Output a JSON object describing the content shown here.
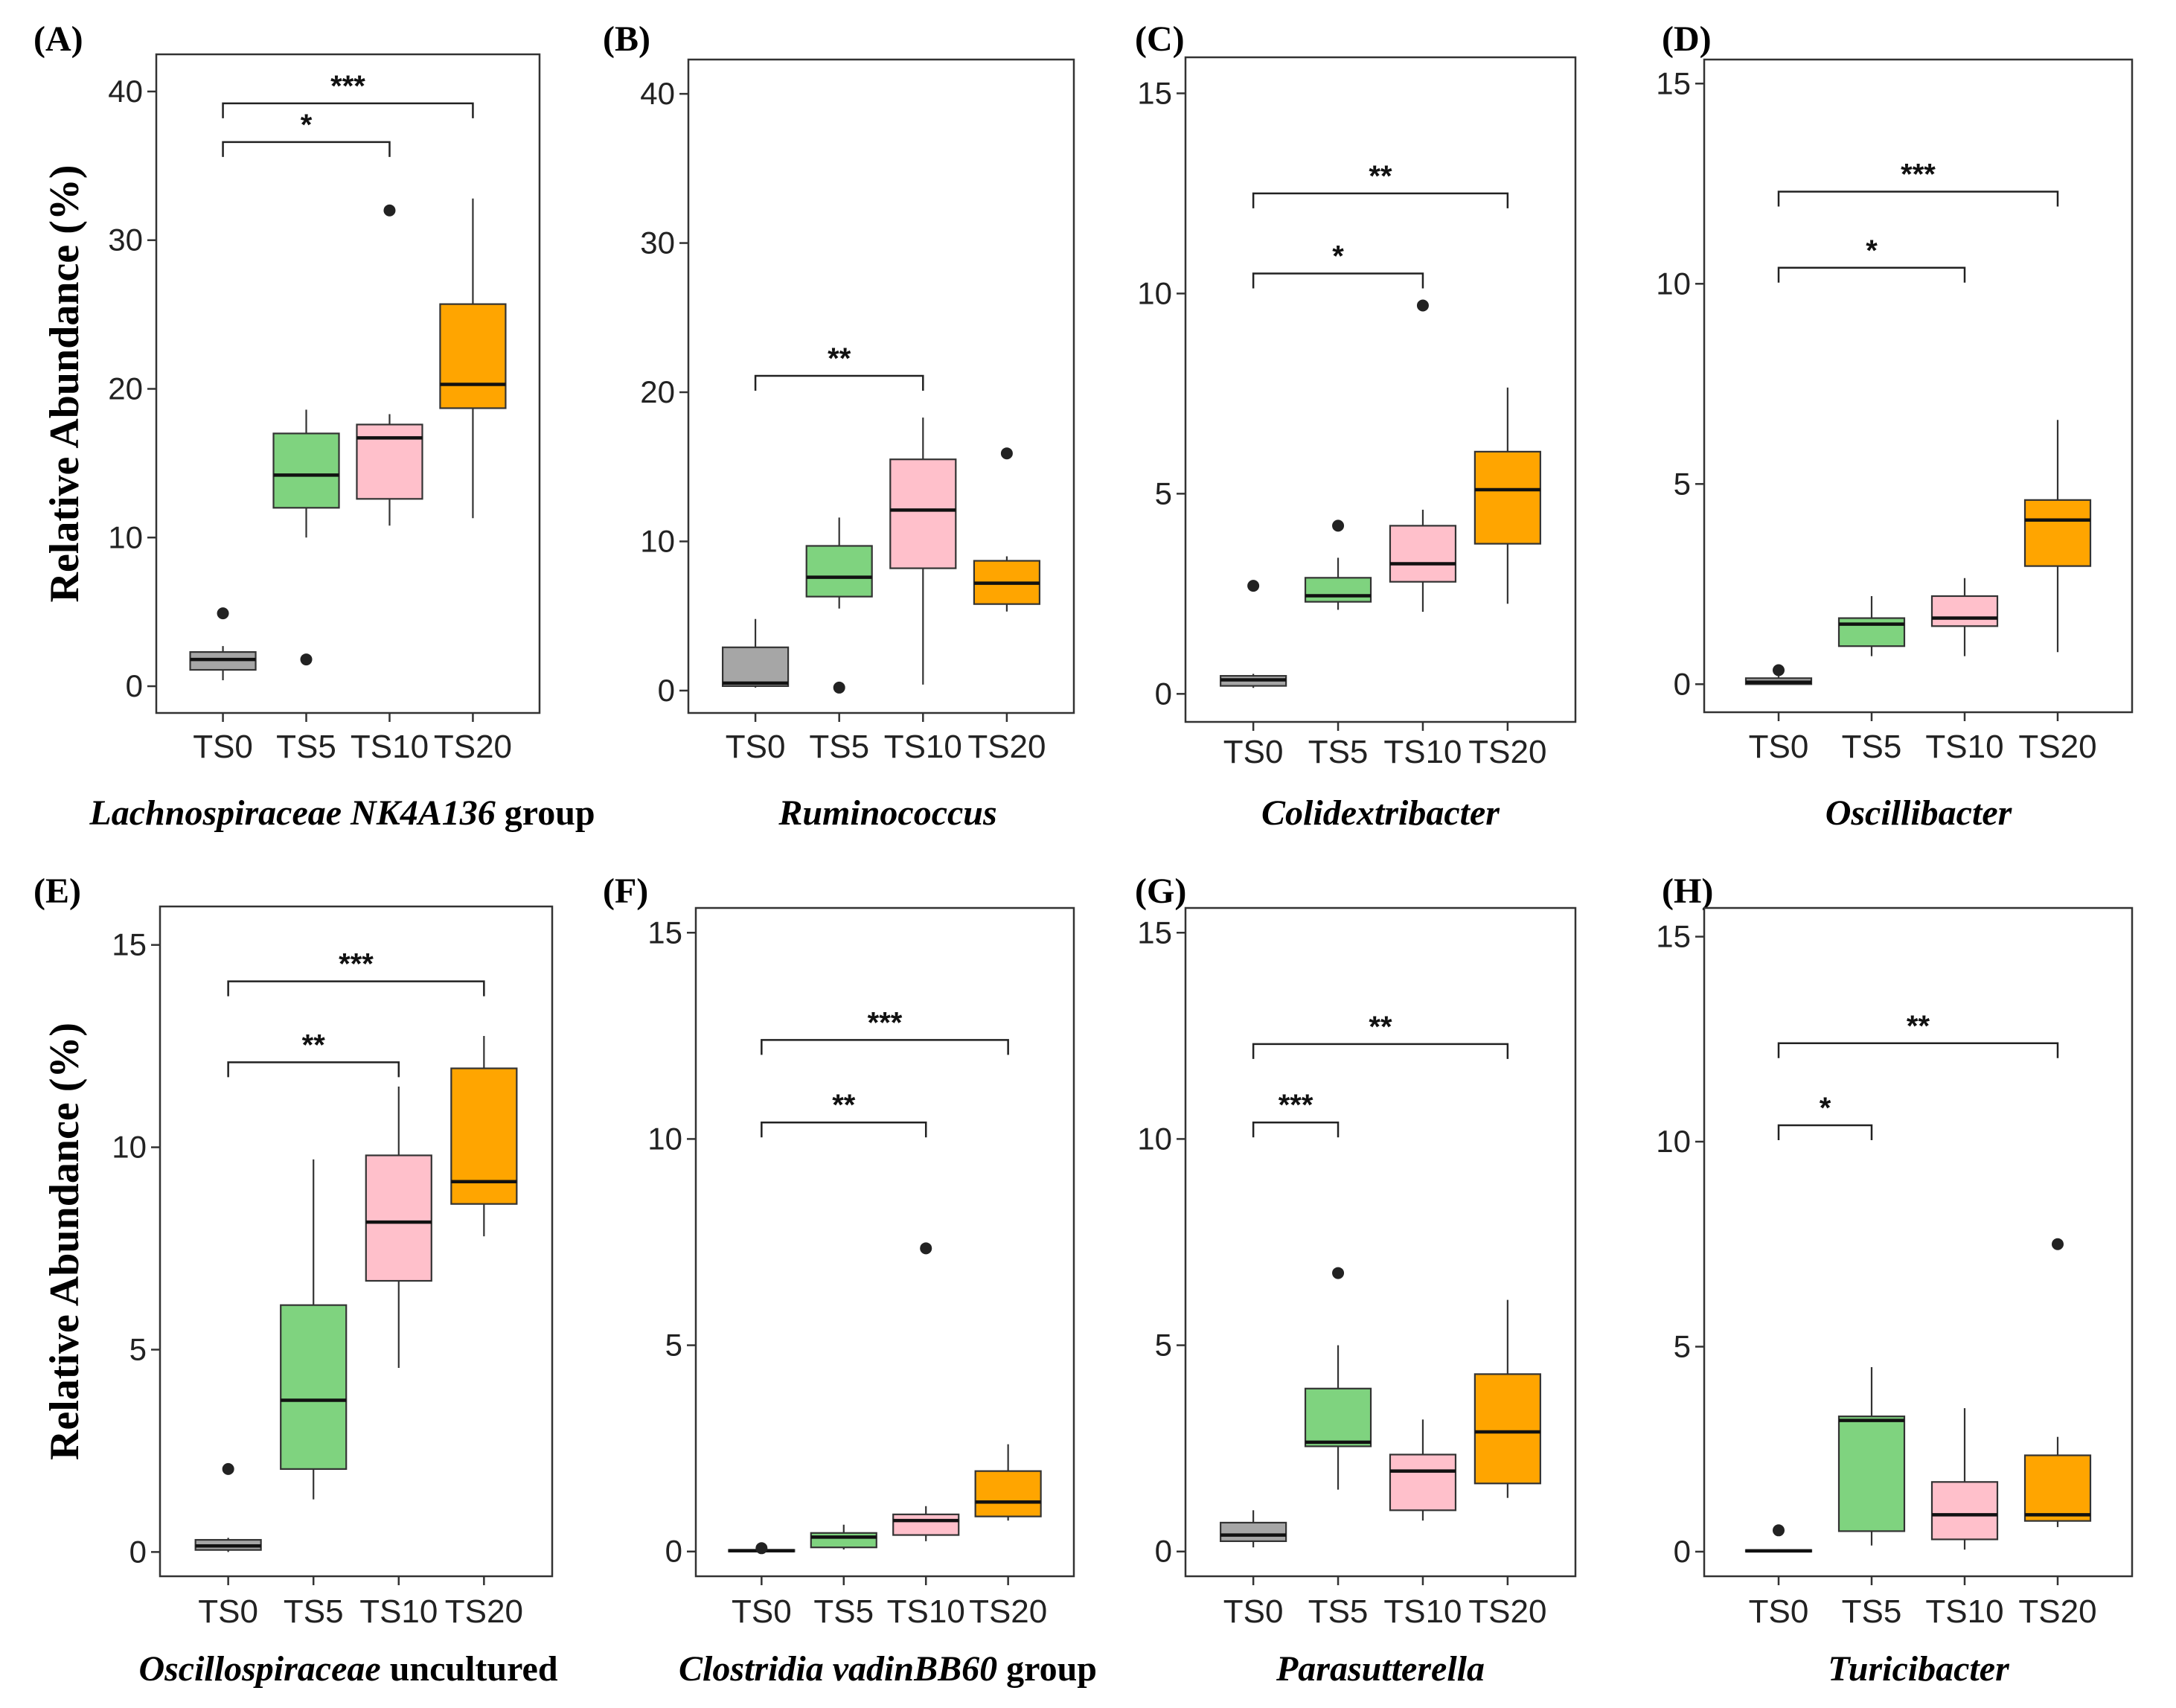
{
  "figure": {
    "y_axis_label": "Relative Abundance (%)"
  },
  "colors": {
    "TS0": "#a6a6a6",
    "TS5": "#7fd37f",
    "TS10": "#ffc0cb",
    "TS20": "#ffa500",
    "outline": "#333333"
  },
  "chart_data": [
    {
      "type": "boxplot",
      "label": "(A)",
      "genus_italic": "Lachnospiraceae NK4A136",
      "genus_plain": " group",
      "categories": [
        "TS0",
        "TS5",
        "TS10",
        "TS20"
      ],
      "ylim": [
        -1.8,
        42.5
      ],
      "yticks": [
        0,
        10,
        20,
        30,
        40
      ],
      "boxes": [
        {
          "q1": 1.1,
          "median": 1.8,
          "q3": 2.3,
          "whislo": 0.4,
          "whishi": 2.7,
          "outliers": [
            4.9
          ]
        },
        {
          "q1": 12.0,
          "median": 14.2,
          "q3": 17.0,
          "whislo": 10.0,
          "whishi": 18.6,
          "outliers": [
            1.8
          ]
        },
        {
          "q1": 12.6,
          "median": 16.7,
          "q3": 17.6,
          "whislo": 10.8,
          "whishi": 18.3,
          "outliers": [
            32.0
          ]
        },
        {
          "q1": 18.7,
          "median": 20.3,
          "q3": 25.7,
          "whislo": 11.3,
          "whishi": 32.8,
          "outliers": []
        }
      ],
      "significance": [
        {
          "from": 0,
          "to": 3,
          "label": "***",
          "y": 39.2
        },
        {
          "from": 0,
          "to": 2,
          "label": "*",
          "y": 36.6
        }
      ]
    },
    {
      "type": "boxplot",
      "label": "(B)",
      "genus_italic": "Ruminococcus",
      "genus_plain": "",
      "categories": [
        "TS0",
        "TS5",
        "TS10",
        "TS20"
      ],
      "ylim": [
        -1.5,
        42.3
      ],
      "yticks": [
        0,
        10,
        20,
        30,
        40
      ],
      "boxes": [
        {
          "q1": 0.3,
          "median": 0.5,
          "q3": 2.9,
          "whislo": 0.2,
          "whishi": 4.8,
          "outliers": []
        },
        {
          "q1": 6.3,
          "median": 7.6,
          "q3": 9.7,
          "whislo": 5.5,
          "whishi": 11.6,
          "outliers": [
            0.2
          ]
        },
        {
          "q1": 8.2,
          "median": 12.1,
          "q3": 15.5,
          "whislo": 0.4,
          "whishi": 18.3,
          "outliers": []
        },
        {
          "q1": 5.8,
          "median": 7.2,
          "q3": 8.7,
          "whislo": 5.3,
          "whishi": 9.0,
          "outliers": [
            15.9
          ]
        }
      ],
      "significance": [
        {
          "from": 0,
          "to": 2,
          "label": "**",
          "y": 21.1
        }
      ]
    },
    {
      "type": "boxplot",
      "label": "(C)",
      "genus_italic": "Colidextribacter",
      "genus_plain": "",
      "categories": [
        "TS0",
        "TS5",
        "TS10",
        "TS20"
      ],
      "ylim": [
        -0.7,
        15.9
      ],
      "yticks": [
        0,
        5,
        10,
        15
      ],
      "boxes": [
        {
          "q1": 0.2,
          "median": 0.35,
          "q3": 0.45,
          "whislo": 0.15,
          "whishi": 0.5,
          "outliers": [
            2.7
          ]
        },
        {
          "q1": 2.3,
          "median": 2.45,
          "q3": 2.9,
          "whislo": 2.1,
          "whishi": 3.4,
          "outliers": [
            4.2
          ]
        },
        {
          "q1": 2.8,
          "median": 3.25,
          "q3": 4.2,
          "whislo": 2.05,
          "whishi": 4.6,
          "outliers": [
            9.7
          ]
        },
        {
          "q1": 3.75,
          "median": 5.1,
          "q3": 6.05,
          "whislo": 2.25,
          "whishi": 7.65,
          "outliers": []
        }
      ],
      "significance": [
        {
          "from": 0,
          "to": 3,
          "label": "**",
          "y": 12.5
        },
        {
          "from": 0,
          "to": 2,
          "label": "*",
          "y": 10.5
        }
      ]
    },
    {
      "type": "boxplot",
      "label": "(D)",
      "genus_italic": "Oscillibacter",
      "genus_plain": "",
      "categories": [
        "TS0",
        "TS5",
        "TS10",
        "TS20"
      ],
      "ylim": [
        -0.7,
        15.6
      ],
      "yticks": [
        0,
        5,
        10,
        15
      ],
      "boxes": [
        {
          "q1": 0.0,
          "median": 0.05,
          "q3": 0.15,
          "whislo": 0.0,
          "whishi": 0.2,
          "outliers": [
            0.35
          ]
        },
        {
          "q1": 0.95,
          "median": 1.5,
          "q3": 1.65,
          "whislo": 0.7,
          "whishi": 2.2,
          "outliers": []
        },
        {
          "q1": 1.45,
          "median": 1.65,
          "q3": 2.2,
          "whislo": 0.7,
          "whishi": 2.65,
          "outliers": []
        },
        {
          "q1": 2.95,
          "median": 4.1,
          "q3": 4.6,
          "whislo": 0.8,
          "whishi": 6.6,
          "outliers": []
        }
      ],
      "significance": [
        {
          "from": 0,
          "to": 3,
          "label": "***",
          "y": 12.3
        },
        {
          "from": 0,
          "to": 2,
          "label": "*",
          "y": 10.4
        }
      ]
    },
    {
      "type": "boxplot",
      "label": "(E)",
      "genus_italic": "Oscillospiraceae",
      "genus_plain": " uncultured",
      "categories": [
        "TS0",
        "TS5",
        "TS10",
        "TS20"
      ],
      "ylim": [
        -0.6,
        15.95
      ],
      "yticks": [
        0,
        5,
        10,
        15
      ],
      "boxes": [
        {
          "q1": 0.05,
          "median": 0.15,
          "q3": 0.3,
          "whislo": 0.0,
          "whishi": 0.35,
          "outliers": [
            2.05
          ]
        },
        {
          "q1": 2.05,
          "median": 3.75,
          "q3": 6.1,
          "whislo": 1.3,
          "whishi": 9.7,
          "outliers": []
        },
        {
          "q1": 6.7,
          "median": 8.15,
          "q3": 9.8,
          "whislo": 4.55,
          "whishi": 11.5,
          "outliers": []
        },
        {
          "q1": 8.6,
          "median": 9.15,
          "q3": 11.95,
          "whislo": 7.8,
          "whishi": 12.75,
          "outliers": []
        }
      ],
      "significance": [
        {
          "from": 0,
          "to": 3,
          "label": "***",
          "y": 14.1
        },
        {
          "from": 0,
          "to": 2,
          "label": "**",
          "y": 12.1
        }
      ]
    },
    {
      "type": "boxplot",
      "label": "(F)",
      "genus_italic": "Clostridia vadinBB60",
      "genus_plain": " group",
      "categories": [
        "TS0",
        "TS5",
        "TS10",
        "TS20"
      ],
      "ylim": [
        -0.6,
        15.6
      ],
      "yticks": [
        0,
        5,
        10,
        15
      ],
      "boxes": [
        {
          "q1": 0.0,
          "median": 0.02,
          "q3": 0.04,
          "whislo": 0.0,
          "whishi": 0.06,
          "outliers": [
            0.08
          ]
        },
        {
          "q1": 0.1,
          "median": 0.35,
          "q3": 0.45,
          "whislo": 0.05,
          "whishi": 0.65,
          "outliers": []
        },
        {
          "q1": 0.4,
          "median": 0.75,
          "q3": 0.9,
          "whislo": 0.25,
          "whishi": 1.1,
          "outliers": [
            7.35
          ]
        },
        {
          "q1": 0.85,
          "median": 1.2,
          "q3": 1.95,
          "whislo": 0.75,
          "whishi": 2.6,
          "outliers": []
        }
      ],
      "significance": [
        {
          "from": 0,
          "to": 3,
          "label": "***",
          "y": 12.4
        },
        {
          "from": 0,
          "to": 2,
          "label": "**",
          "y": 10.4
        }
      ]
    },
    {
      "type": "boxplot",
      "label": "(G)",
      "genus_italic": "Parasutterella",
      "genus_plain": "",
      "categories": [
        "TS0",
        "TS5",
        "TS10",
        "TS20"
      ],
      "ylim": [
        -0.6,
        15.6
      ],
      "yticks": [
        0,
        5,
        10,
        15
      ],
      "boxes": [
        {
          "q1": 0.25,
          "median": 0.4,
          "q3": 0.7,
          "whislo": 0.1,
          "whishi": 1.0,
          "outliers": []
        },
        {
          "q1": 2.55,
          "median": 2.65,
          "q3": 3.95,
          "whislo": 1.5,
          "whishi": 5.0,
          "outliers": [
            6.75
          ]
        },
        {
          "q1": 1.0,
          "median": 1.95,
          "q3": 2.35,
          "whislo": 0.75,
          "whishi": 3.2,
          "outliers": []
        },
        {
          "q1": 1.65,
          "median": 2.9,
          "q3": 4.3,
          "whislo": 1.3,
          "whishi": 6.1,
          "outliers": []
        }
      ],
      "significance": [
        {
          "from": 0,
          "to": 3,
          "label": "**",
          "y": 12.3
        },
        {
          "from": 0,
          "to": 1,
          "label": "***",
          "y": 10.4
        }
      ]
    },
    {
      "type": "boxplot",
      "label": "(H)",
      "genus_italic": "Turicibacter",
      "genus_plain": "",
      "categories": [
        "TS0",
        "TS5",
        "TS10",
        "TS20"
      ],
      "ylim": [
        -0.6,
        15.7
      ],
      "yticks": [
        0,
        5,
        10,
        15
      ],
      "boxes": [
        {
          "q1": 0.0,
          "median": 0.02,
          "q3": 0.04,
          "whislo": 0.0,
          "whishi": 0.06,
          "outliers": [
            0.52
          ]
        },
        {
          "q1": 0.5,
          "median": 3.2,
          "q3": 3.3,
          "whislo": 0.15,
          "whishi": 4.5,
          "outliers": []
        },
        {
          "q1": 0.3,
          "median": 0.9,
          "q3": 1.7,
          "whislo": 0.05,
          "whishi": 3.5,
          "outliers": []
        },
        {
          "q1": 0.75,
          "median": 0.9,
          "q3": 2.35,
          "whislo": 0.6,
          "whishi": 2.8,
          "outliers": [
            7.5
          ]
        }
      ],
      "significance": [
        {
          "from": 0,
          "to": 3,
          "label": "**",
          "y": 12.4
        },
        {
          "from": 0,
          "to": 1,
          "label": "*",
          "y": 10.4
        }
      ]
    }
  ]
}
